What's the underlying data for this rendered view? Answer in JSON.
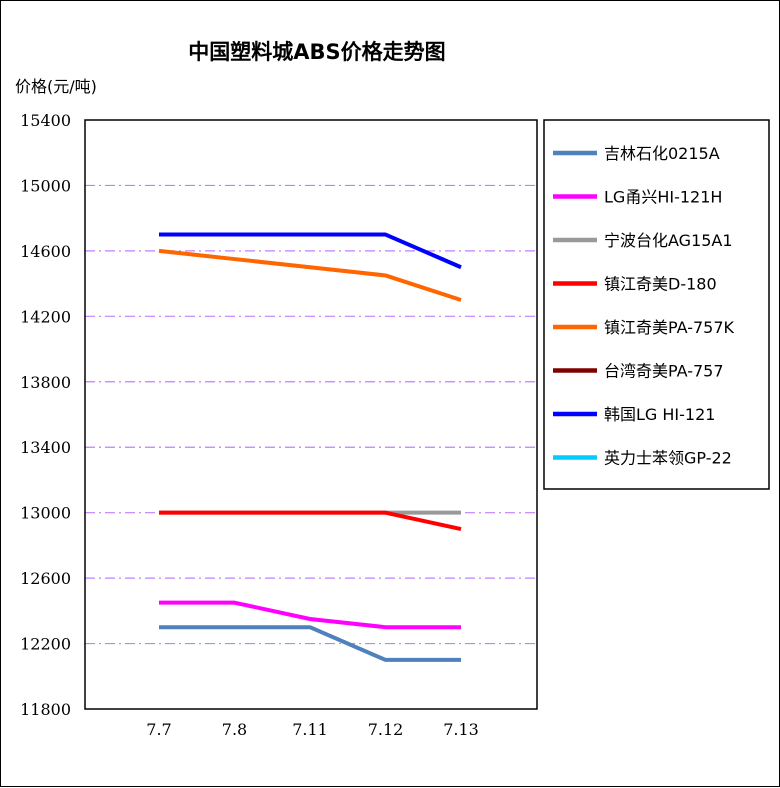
{
  "chart_data": {
    "type": "line",
    "title": "中国塑料城ABS价格走势图",
    "ylabel": "价格(元/吨)",
    "xlabel": "",
    "categories": [
      "7.7",
      "7.8",
      "7.11",
      "7.12",
      "7.13"
    ],
    "ylim": [
      11800,
      15400
    ],
    "yticks": [
      11800,
      12200,
      12600,
      13000,
      13400,
      13800,
      14200,
      14600,
      15000,
      15400
    ],
    "grid": "horizontal dash-dot",
    "grid_color": "#bf80ff",
    "legend_position": "right",
    "series": [
      {
        "name": "吉林石化0215A",
        "color": "#4f81bd",
        "values": [
          12300,
          12300,
          12300,
          12100,
          12100
        ]
      },
      {
        "name": "LG甬兴HI-121H",
        "color": "#ff00ff",
        "values": [
          12450,
          12450,
          12350,
          12300,
          12300
        ]
      },
      {
        "name": "宁波台化AG15A1",
        "color": "#999999",
        "values": [
          13000,
          13000,
          13000,
          13000,
          13000
        ]
      },
      {
        "name": "镇江奇美D-180",
        "color": "#ff0000",
        "values": [
          13000,
          13000,
          13000,
          13000,
          12900
        ]
      },
      {
        "name": "镇江奇美PA-757K",
        "color": "#ff6600",
        "values": [
          14600,
          14550,
          14500,
          14450,
          14300
        ]
      },
      {
        "name": "台湾奇美PA-757",
        "color": "#800000",
        "values": [
          null,
          null,
          null,
          null,
          null
        ]
      },
      {
        "name": "韩国LG HI-121",
        "color": "#0000ff",
        "values": [
          14700,
          14700,
          14700,
          14700,
          14500
        ]
      },
      {
        "name": "英力士苯领GP-22",
        "color": "#00ccff",
        "values": [
          null,
          null,
          null,
          null,
          null
        ]
      }
    ]
  }
}
